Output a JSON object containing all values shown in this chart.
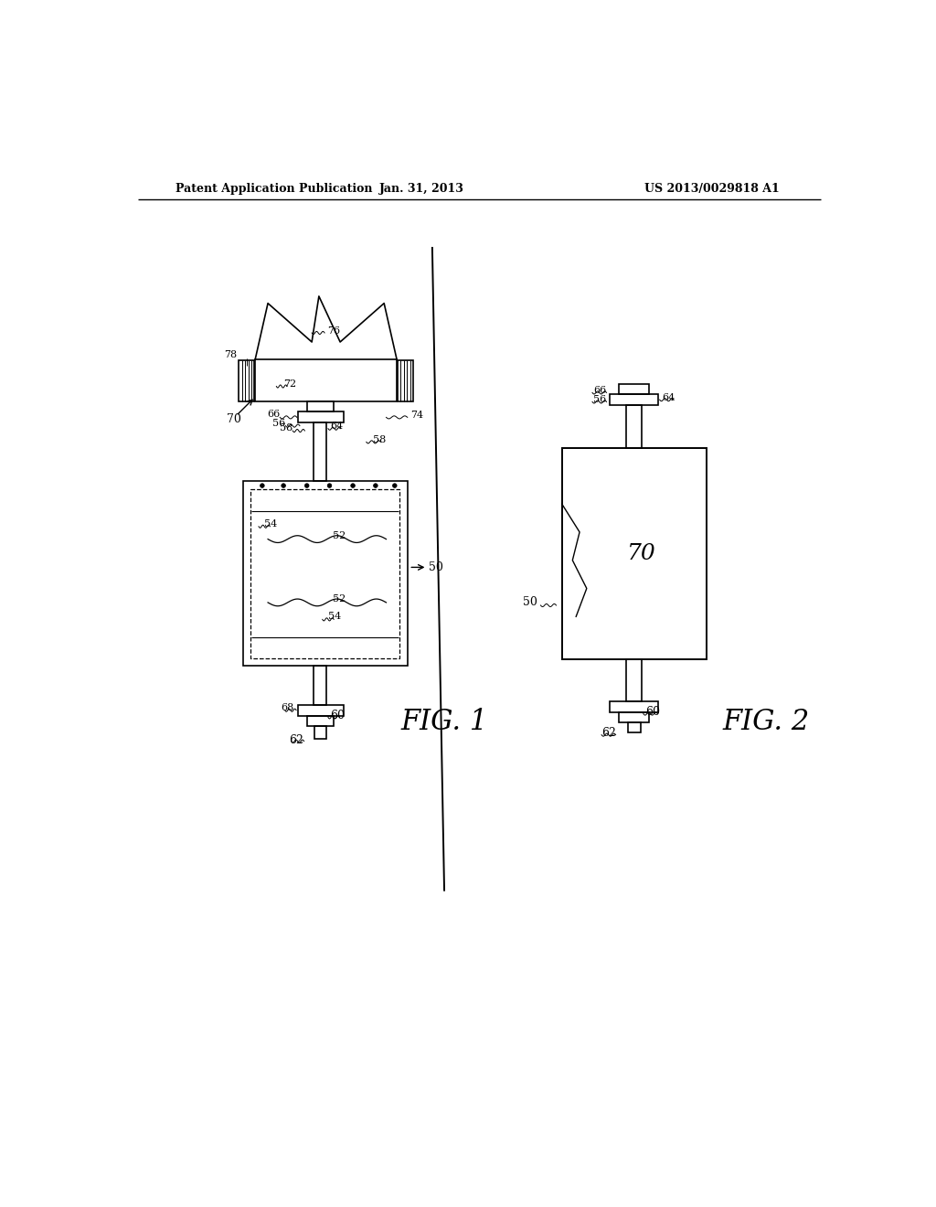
{
  "bg_color": "#ffffff",
  "header_left": "Patent Application Publication",
  "header_center": "Jan. 31, 2013",
  "header_right": "US 2013/0029818 A1",
  "line_color": "#000000",
  "line_width": 1.2
}
